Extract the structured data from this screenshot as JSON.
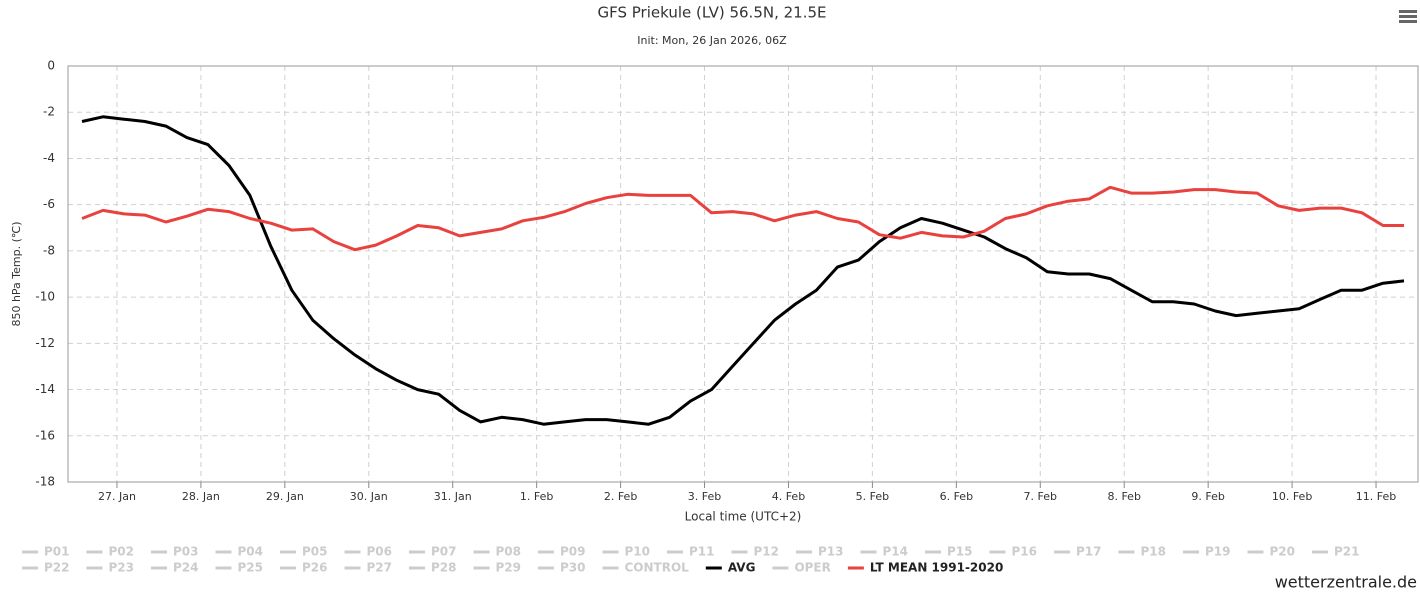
{
  "chart_data": {
    "type": "line",
    "title": "GFS Priekule (LV) 56.5N, 21.5E",
    "subtitle": "Init: Mon, 26 Jan 2026, 06Z",
    "x_label": "Local time (UTC+2)",
    "y_label": "850 hPa Temp. (℃)",
    "credit": "wetterzentrale.de",
    "grid": true,
    "ylim": [
      -18,
      0
    ],
    "yticks": [
      -18,
      -16,
      -14,
      -12,
      -10,
      -8,
      -6,
      -4,
      -2,
      0
    ],
    "xlim": [
      2,
      388
    ],
    "xticks": [
      {
        "value": 16,
        "label": "27. Jan"
      },
      {
        "value": 40,
        "label": "28. Jan"
      },
      {
        "value": 64,
        "label": "29. Jan"
      },
      {
        "value": 88,
        "label": "30. Jan"
      },
      {
        "value": 112,
        "label": "31. Jan"
      },
      {
        "value": 136,
        "label": "1. Feb"
      },
      {
        "value": 160,
        "label": "2. Feb"
      },
      {
        "value": 184,
        "label": "3. Feb"
      },
      {
        "value": 208,
        "label": "4. Feb"
      },
      {
        "value": 232,
        "label": "5. Feb"
      },
      {
        "value": 256,
        "label": "6. Feb"
      },
      {
        "value": 280,
        "label": "7. Feb"
      },
      {
        "value": 304,
        "label": "8. Feb"
      },
      {
        "value": 328,
        "label": "9. Feb"
      },
      {
        "value": 352,
        "label": "10. Feb"
      },
      {
        "value": 376,
        "label": "11. Feb"
      }
    ],
    "x": [
      6,
      12,
      18,
      24,
      30,
      36,
      42,
      48,
      54,
      60,
      66,
      72,
      78,
      84,
      90,
      96,
      102,
      108,
      114,
      120,
      126,
      132,
      138,
      144,
      150,
      156,
      162,
      168,
      174,
      180,
      186,
      192,
      198,
      204,
      210,
      216,
      222,
      228,
      234,
      240,
      246,
      252,
      258,
      264,
      270,
      276,
      282,
      288,
      294,
      300,
      306,
      312,
      318,
      324,
      330,
      336,
      342,
      348,
      354,
      360,
      366,
      372,
      378,
      384
    ],
    "hidden_series": [
      {
        "name": "P01"
      },
      {
        "name": "P02"
      },
      {
        "name": "P03"
      },
      {
        "name": "P04"
      },
      {
        "name": "P05"
      },
      {
        "name": "P06"
      },
      {
        "name": "P07"
      },
      {
        "name": "P08"
      },
      {
        "name": "P09"
      },
      {
        "name": "P10"
      },
      {
        "name": "P11"
      },
      {
        "name": "P12"
      },
      {
        "name": "P13"
      },
      {
        "name": "P14"
      },
      {
        "name": "P15"
      },
      {
        "name": "P16"
      },
      {
        "name": "P17"
      },
      {
        "name": "P18"
      },
      {
        "name": "P19"
      },
      {
        "name": "P20"
      },
      {
        "name": "P21"
      },
      {
        "name": "P22"
      },
      {
        "name": "P23"
      },
      {
        "name": "P24"
      },
      {
        "name": "P25"
      },
      {
        "name": "P26"
      },
      {
        "name": "P27"
      },
      {
        "name": "P28"
      },
      {
        "name": "P29"
      },
      {
        "name": "P30"
      },
      {
        "name": "CONTROL"
      }
    ],
    "series": [
      {
        "name": "AVG",
        "color": "#000000",
        "values": [
          -2.4,
          -2.2,
          -2.3,
          -2.4,
          -2.6,
          -3.1,
          -3.4,
          -4.3,
          -5.6,
          -7.8,
          -9.7,
          -11.0,
          -11.8,
          -12.5,
          -13.1,
          -13.6,
          -14.0,
          -14.2,
          -14.9,
          -15.4,
          -15.2,
          -15.3,
          -15.5,
          -15.4,
          -15.3,
          -15.3,
          -15.4,
          -15.5,
          -15.2,
          -14.5,
          -14.0,
          -13.0,
          -12.0,
          -11.0,
          -10.3,
          -9.7,
          -8.7,
          -8.4,
          -7.6,
          -7.0,
          -6.6,
          -6.8,
          -7.1,
          -7.4,
          -7.9,
          -8.3,
          -8.9,
          -9.0,
          -9.0,
          -9.2,
          -9.7,
          -10.2,
          -10.2,
          -10.3,
          -10.6,
          -10.8,
          -10.7,
          -10.6,
          -10.5,
          -10.1,
          -9.7,
          -9.7,
          -9.4,
          -9.3
        ]
      },
      {
        "name": "OPER",
        "color": "#cccccc",
        "hidden": true
      },
      {
        "name": "LT MEAN 1991-2020",
        "color": "#e8413e",
        "values": [
          -6.6,
          -6.25,
          -6.4,
          -6.45,
          -6.75,
          -6.5,
          -6.2,
          -6.3,
          -6.6,
          -6.8,
          -7.1,
          -7.05,
          -7.6,
          -7.95,
          -7.75,
          -7.35,
          -6.9,
          -7.0,
          -7.35,
          -7.2,
          -7.05,
          -6.7,
          -6.55,
          -6.3,
          -5.95,
          -5.7,
          -5.55,
          -5.6,
          -5.6,
          -5.6,
          -6.35,
          -6.3,
          -6.4,
          -6.7,
          -6.45,
          -6.3,
          -6.6,
          -6.75,
          -7.3,
          -7.45,
          -7.2,
          -7.35,
          -7.4,
          -7.15,
          -6.6,
          -6.4,
          -6.05,
          -5.85,
          -5.75,
          -5.25,
          -5.5,
          -5.5,
          -5.45,
          -5.35,
          -5.35,
          -5.45,
          -5.5,
          -6.05,
          -6.25,
          -6.15,
          -6.15,
          -6.35,
          -6.9,
          -6.9
        ]
      }
    ]
  }
}
